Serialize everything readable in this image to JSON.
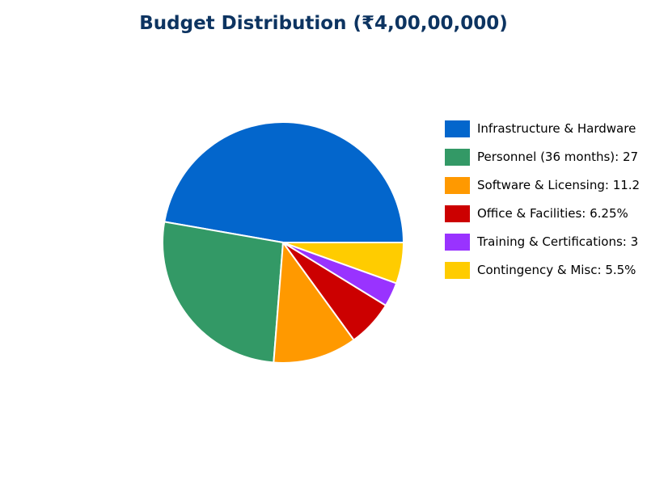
{
  "chart_data": {
    "type": "pie",
    "title": "Budget Distribution (₹4,00,00,000)",
    "series": [
      {
        "name": "Infrastructure & Hardware",
        "legend_label": "Infrastructure & Hardware",
        "value": 47.25,
        "color": "#0366cc"
      },
      {
        "name": "Personnel (36 months)",
        "legend_label": "Personnel (36 months): 27",
        "value": 26.5,
        "color": "#339966"
      },
      {
        "name": "Software & Licensing",
        "legend_label": "Software & Licensing: 11.2",
        "value": 11.25,
        "color": "#ff9900"
      },
      {
        "name": "Office & Facilities",
        "legend_label": "Office & Facilities: 6.25%",
        "value": 6.25,
        "color": "#cc0000"
      },
      {
        "name": "Training & Certifications",
        "legend_label": "Training & Certifications: 3",
        "value": 3.25,
        "color": "#9933ff"
      },
      {
        "name": "Contingency & Misc",
        "legend_label": "Contingency & Misc: 5.5%",
        "value": 5.5,
        "color": "#ffcc00"
      }
    ],
    "start_angle_deg": 0,
    "direction": "counterclockwise",
    "legend_position": "right"
  }
}
